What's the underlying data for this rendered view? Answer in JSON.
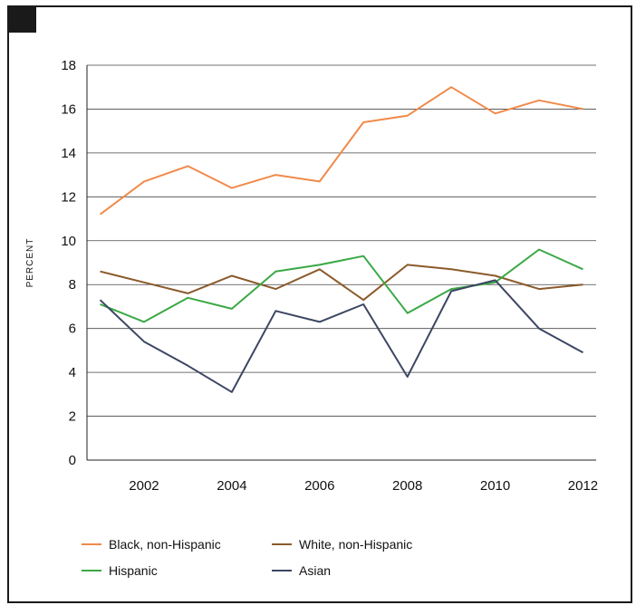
{
  "chart_data": {
    "type": "line",
    "title": "",
    "xlabel": "",
    "ylabel": "PERCENT",
    "x": [
      2001,
      2002,
      2003,
      2004,
      2005,
      2006,
      2007,
      2008,
      2009,
      2010,
      2011,
      2012
    ],
    "x_tick_labels": [
      "2002",
      "2004",
      "2006",
      "2008",
      "2010",
      "2012"
    ],
    "x_ticks": [
      2002,
      2004,
      2006,
      2008,
      2010,
      2012
    ],
    "y_ticks": [
      0,
      2,
      4,
      6,
      8,
      10,
      12,
      14,
      16,
      18
    ],
    "y_tick_labels": [
      "0",
      "2",
      "4",
      "6",
      "8",
      "10",
      "12",
      "14",
      "16",
      "18"
    ],
    "xlim": [
      2000.7,
      2012.3
    ],
    "ylim": [
      0,
      18
    ],
    "grid": "horizontal",
    "legend_position": "bottom",
    "series": [
      {
        "name": "Black, non-Hispanic",
        "color": "#f08a4b",
        "values": [
          11.2,
          12.7,
          13.4,
          12.4,
          13.0,
          12.7,
          15.4,
          15.7,
          17.0,
          15.8,
          16.4,
          16.0
        ]
      },
      {
        "name": "White, non-Hispanic",
        "color": "#8b5a2b",
        "values": [
          8.6,
          8.1,
          7.6,
          8.4,
          7.8,
          8.7,
          7.3,
          8.9,
          8.7,
          8.4,
          7.8,
          8.0
        ]
      },
      {
        "name": "Hispanic",
        "color": "#3aa845",
        "values": [
          7.1,
          6.3,
          7.4,
          6.9,
          8.6,
          8.9,
          9.3,
          6.7,
          7.8,
          8.1,
          9.6,
          8.7
        ]
      },
      {
        "name": "Asian",
        "color": "#3d4663",
        "values": [
          7.3,
          5.4,
          4.3,
          3.1,
          6.8,
          6.3,
          7.1,
          3.8,
          7.7,
          8.2,
          6.0,
          4.9
        ]
      }
    ]
  }
}
